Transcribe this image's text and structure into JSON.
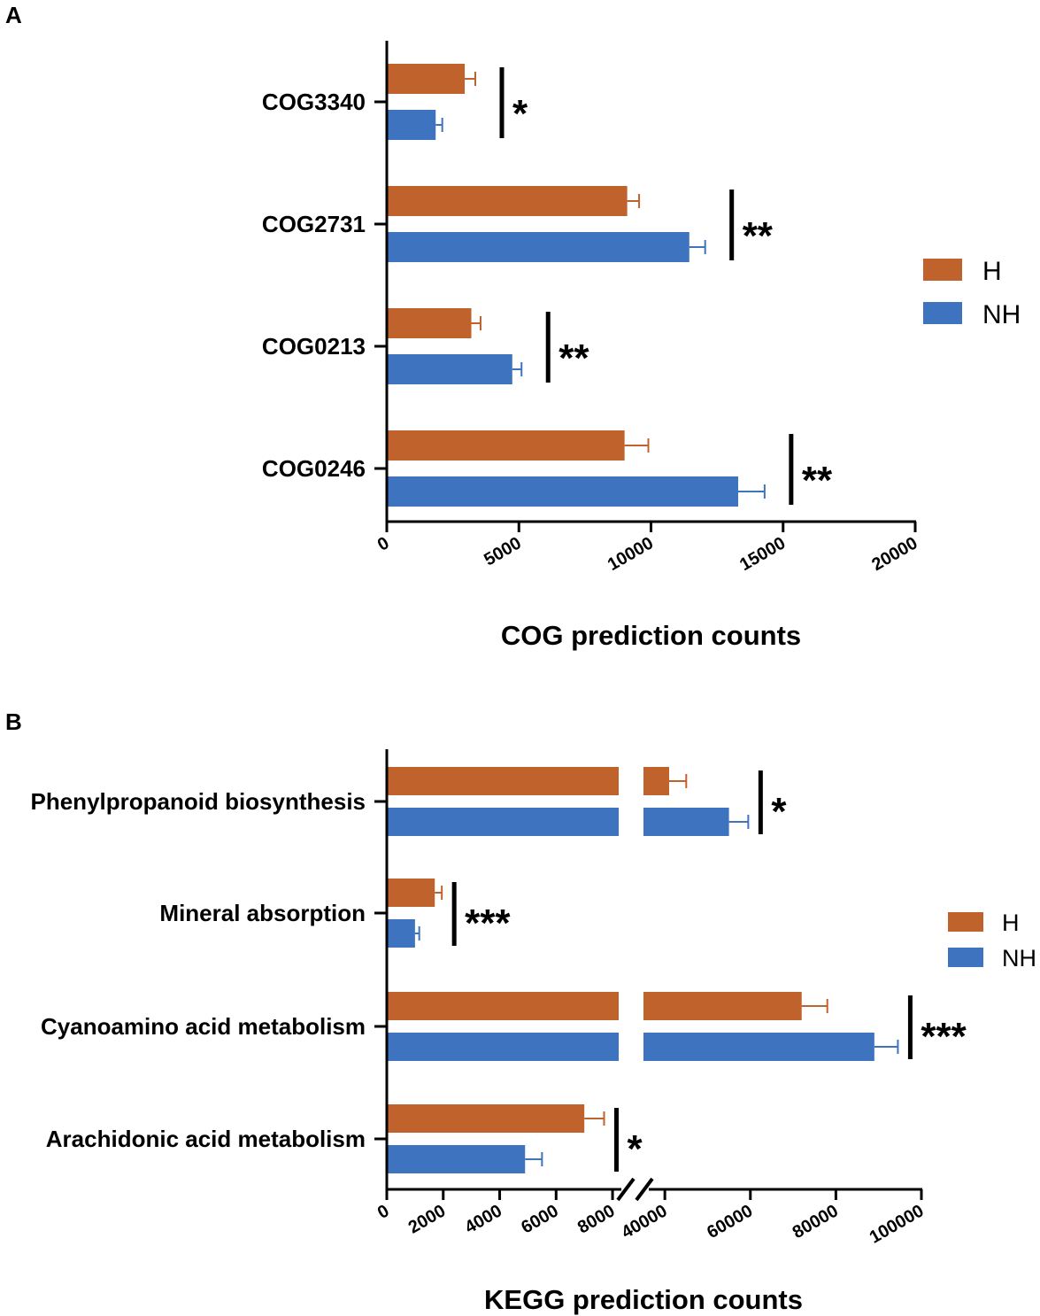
{
  "colors": {
    "H": "#C0622B",
    "NH": "#3E74BF",
    "axis": "#000000"
  },
  "chart_data": [
    {
      "type": "bar",
      "orientation": "horizontal",
      "panel": "A",
      "categories": [
        "COG3340",
        "COG2731",
        "COG0213",
        "COG0246"
      ],
      "series": [
        {
          "name": "H",
          "values": [
            2950,
            9100,
            3200,
            9000
          ],
          "errors": [
            400,
            450,
            350,
            900
          ]
        },
        {
          "name": "NH",
          "values": [
            1850,
            11450,
            4750,
            13300
          ],
          "errors": [
            250,
            600,
            350,
            1000
          ]
        }
      ],
      "significance": [
        "*",
        "**",
        "**",
        "**"
      ],
      "xlabel": "COG prediction counts",
      "ylabel": "",
      "xlim": [
        0,
        20000
      ],
      "xticks": [
        "0",
        "5000",
        "10000",
        "15000",
        "20000"
      ],
      "legend": [
        "H",
        "NH"
      ],
      "legend_position": "right"
    },
    {
      "type": "bar",
      "orientation": "horizontal",
      "panel": "B",
      "axis_break": [
        8500,
        35000
      ],
      "categories": [
        "Phenylpropanoid biosynthesis",
        "Mineral absorption",
        "Cyanoamino acid metabolism",
        "Arachidonic acid metabolism"
      ],
      "series": [
        {
          "name": "H",
          "values": [
            41000,
            1700,
            72000,
            7000
          ],
          "errors": [
            4000,
            250,
            6000,
            700
          ]
        },
        {
          "name": "NH",
          "values": [
            55000,
            1000,
            89000,
            4900
          ],
          "errors": [
            4500,
            150,
            5500,
            600
          ]
        }
      ],
      "significance": [
        "*",
        "***",
        "***",
        "*"
      ],
      "xlabel": "KEGG prediction counts",
      "ylabel": "",
      "xlim": [
        0,
        100000
      ],
      "xticks": [
        "0",
        "2000",
        "4000",
        "6000",
        "8000",
        "40000",
        "60000",
        "80000",
        "100000"
      ],
      "legend": [
        "H",
        "NH"
      ],
      "legend_position": "right"
    }
  ]
}
